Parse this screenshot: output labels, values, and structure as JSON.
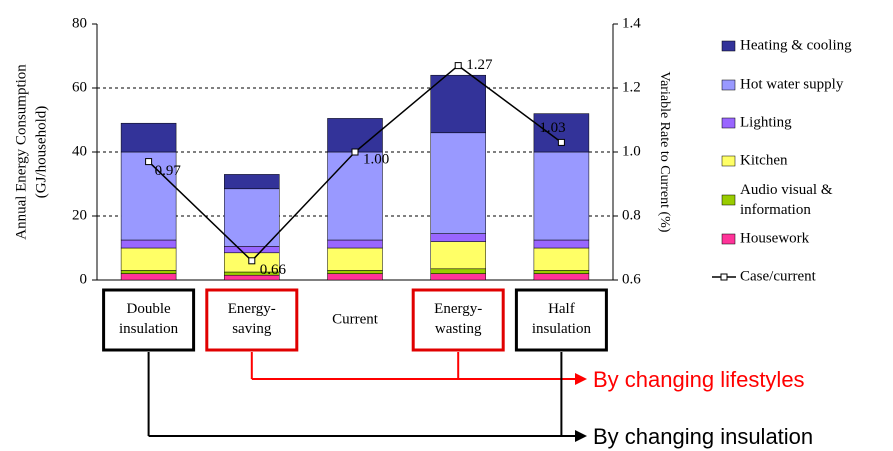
{
  "chart_data": {
    "type": "bar",
    "categories": [
      "Double insulation",
      "Energy-saving",
      "Current",
      "Energy-wasting",
      "Half insulation"
    ],
    "ylabel": [
      "Annual Energy Consumption",
      "(GJ/household)"
    ],
    "y2label": "Variable Rate to Current (%)",
    "ylim": [
      0,
      80
    ],
    "yticks": [
      0,
      20,
      40,
      60,
      80
    ],
    "y2lim": [
      0.6,
      1.4
    ],
    "y2ticks": [
      0.6,
      0.8,
      {
        "value": 1,
        "label": "1.0"
      },
      1.2,
      1.4
    ],
    "grid": true,
    "series": [
      {
        "name": "Housework",
        "color": "#ff3399",
        "values": [
          2,
          1.5,
          2,
          2,
          2
        ]
      },
      {
        "name": "Audio visual & information",
        "color": "#99cc00",
        "values": [
          1,
          1,
          1,
          1.5,
          1
        ]
      },
      {
        "name": "Kitchen",
        "color": "#ffff66",
        "values": [
          7,
          6,
          7,
          8.5,
          7
        ]
      },
      {
        "name": "Lighting",
        "color": "#9966ff",
        "values": [
          2.5,
          2,
          2.5,
          2.5,
          2.5
        ]
      },
      {
        "name": "Hot water supply",
        "color": "#9999ff",
        "values": [
          27.5,
          18,
          27.5,
          31.5,
          27.5
        ]
      },
      {
        "name": "Heating & cooling",
        "color": "#333399",
        "values": [
          9,
          4.5,
          10.5,
          18,
          12
        ]
      },
      {
        "name": "Case/current",
        "type": "line",
        "axis": "y2",
        "color": "#000000",
        "values": [
          0.97,
          0.66,
          1,
          1.27,
          1.03
        ],
        "value_labels": [
          "0.97",
          "0.66",
          "1.00",
          "1.27",
          "1.03"
        ]
      }
    ],
    "annotations": [
      "By changing lifestyles",
      "By changing insulation"
    ]
  }
}
